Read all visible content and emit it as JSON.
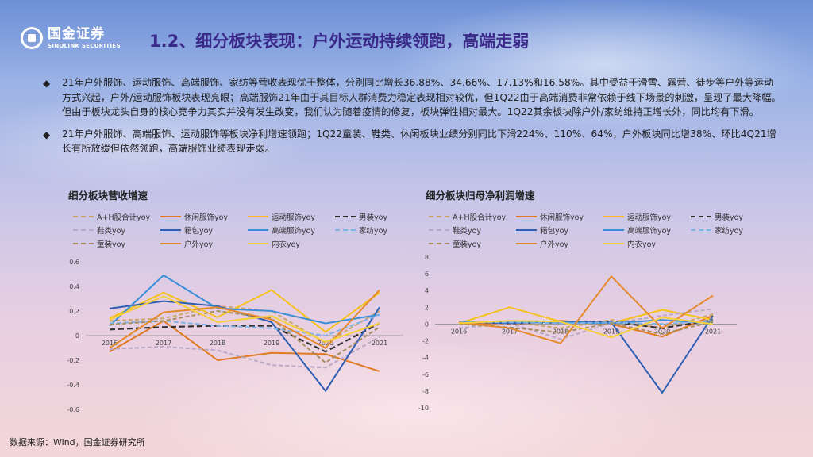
{
  "logo": {
    "cn": "国金证券",
    "en": "SINOLINK SECURITIES"
  },
  "title": "1.2、细分板块表现：户外运动持续领跑，高端走弱",
  "bullets": [
    "21年户外服饰、运动服饰、高端服饰、家纺等营收表现优于整体，分别同比增长36.88%、34.66%、17.13%和16.58%。其中受益于滑雪、露营、徒步等户外等运动方式兴起，户外/运动服饰板块表现亮眼；高端服饰21年由于其目标人群消费力稳定表现相对较优，但1Q22由于高端消费非常依赖于线下场景的刺激，呈现了最大降幅。但由于板块龙头自身的核心竞争力其实并没有发生改变，我们认为随着疫情的修复，板块弹性相对最大。1Q22其余板块除户外/家纺维持正增长外，同比均有下滑。",
    "21年户外服饰、高端服饰、运动服饰等板块净利增速领跑；1Q22童装、鞋类、休闲板块业绩分别同比下滑224%、110%、64%，户外板块同比增38%、环比4Q21增长有所放缓但依然领跑，高端服饰业绩表现走弱。"
  ],
  "source": "数据来源：Wind，国金证券研究所",
  "series_style": [
    {
      "color": "#c8a86a",
      "dash": "5,3",
      "width": 2
    },
    {
      "color": "#e07b22",
      "dash": "",
      "width": 2
    },
    {
      "color": "#f5c21b",
      "dash": "",
      "width": 2
    },
    {
      "color": "#333333",
      "dash": "7,4",
      "width": 2.2
    },
    {
      "color": "#b9a9c4",
      "dash": "5,3",
      "width": 2
    },
    {
      "color": "#2f5fb3",
      "dash": "",
      "width": 2
    },
    {
      "color": "#3a8fd8",
      "dash": "",
      "width": 2
    },
    {
      "color": "#7fb4e8",
      "dash": "6,3",
      "width": 2
    },
    {
      "color": "#a88f5e",
      "dash": "5,3",
      "width": 2
    },
    {
      "color": "#e5892a",
      "dash": "",
      "width": 2
    },
    {
      "color": "#f7cf3a",
      "dash": "",
      "width": 2
    }
  ],
  "chart_data": [
    {
      "type": "line",
      "title": "细分板块营收增速",
      "x": [
        "2016",
        "2017",
        "2018",
        "2019",
        "2020",
        "2021"
      ],
      "ylim": [
        -0.6,
        0.6
      ],
      "yticks": [
        -0.6,
        -0.4,
        -0.2,
        0,
        0.2,
        0.4,
        0.6
      ],
      "series": [
        {
          "name": "A+H股合计yoy",
          "values": [
            0.12,
            0.14,
            0.24,
            0.2,
            -0.06,
            0.2
          ]
        },
        {
          "name": "休闲服饰yoy",
          "values": [
            -0.13,
            0.12,
            -0.2,
            -0.14,
            -0.15,
            -0.29
          ]
        },
        {
          "name": "运动服饰yoy",
          "values": [
            0.14,
            0.35,
            0.15,
            0.37,
            0.03,
            0.35
          ]
        },
        {
          "name": "男装yoy",
          "values": [
            0.05,
            0.07,
            0.08,
            0.08,
            -0.13,
            0.1
          ]
        },
        {
          "name": "鞋类yoy",
          "values": [
            -0.11,
            -0.09,
            -0.12,
            -0.24,
            -0.26,
            -0.01
          ]
        },
        {
          "name": "箱包yoy",
          "values": [
            0.22,
            0.28,
            0.24,
            0.11,
            -0.45,
            0.23
          ]
        },
        {
          "name": "高端服饰yoy",
          "values": [
            0.08,
            0.49,
            0.22,
            0.2,
            0.1,
            0.17
          ]
        },
        {
          "name": "家纺yoy",
          "values": [
            0.1,
            0.12,
            0.08,
            0.06,
            0.0,
            0.17
          ]
        },
        {
          "name": "童装yoy",
          "values": [
            0.09,
            0.12,
            0.2,
            0.14,
            -0.22,
            0.07
          ]
        },
        {
          "name": "户外yoy",
          "values": [
            -0.1,
            0.19,
            0.23,
            0.13,
            -0.1,
            0.37
          ]
        },
        {
          "name": "内衣yoy",
          "values": [
            0.13,
            0.32,
            0.11,
            0.16,
            -0.05,
            0.1
          ]
        }
      ]
    },
    {
      "type": "line",
      "title": "细分板块归母净利润增速",
      "x": [
        "2016",
        "2017",
        "2018",
        "2019",
        "2020",
        "2021"
      ],
      "ylim": [
        -10,
        8
      ],
      "yticks": [
        -10,
        -8,
        -6,
        -4,
        -2,
        0,
        2,
        4,
        6,
        8
      ],
      "series": [
        {
          "name": "A+H股合计yoy",
          "values": [
            0.2,
            0.3,
            -0.5,
            0.5,
            -0.5,
            1.2
          ]
        },
        {
          "name": "休闲服饰yoy",
          "values": [
            0.1,
            0.0,
            0.4,
            0.0,
            -1.5,
            1.0
          ]
        },
        {
          "name": "运动服饰yoy",
          "values": [
            0.1,
            2.0,
            0.3,
            0.1,
            1.7,
            0.5
          ]
        },
        {
          "name": "男装yoy",
          "values": [
            0.3,
            0.1,
            0.2,
            0.3,
            -0.5,
            0.5
          ]
        },
        {
          "name": "鞋类yoy",
          "values": [
            -0.5,
            0.1,
            -1.8,
            0.1,
            1.0,
            1.8
          ]
        },
        {
          "name": "箱包yoy",
          "values": [
            0.3,
            0.1,
            0.3,
            0.2,
            -8.2,
            1.0
          ]
        },
        {
          "name": "高端服饰yoy",
          "values": [
            0.3,
            0.3,
            0.2,
            0.1,
            0.5,
            0.1
          ]
        },
        {
          "name": "家纺yoy",
          "values": [
            0.2,
            0.2,
            0.1,
            0.2,
            0.0,
            0.4
          ]
        },
        {
          "name": "童装yoy",
          "values": [
            0.0,
            -0.4,
            -1.0,
            0.1,
            -1.2,
            0.3
          ]
        },
        {
          "name": "户外yoy",
          "values": [
            0.2,
            -0.5,
            -2.3,
            5.7,
            -0.5,
            3.4
          ]
        },
        {
          "name": "内衣yoy",
          "values": [
            0.1,
            0.4,
            0.3,
            -1.6,
            0.8,
            0.0
          ]
        }
      ]
    }
  ]
}
